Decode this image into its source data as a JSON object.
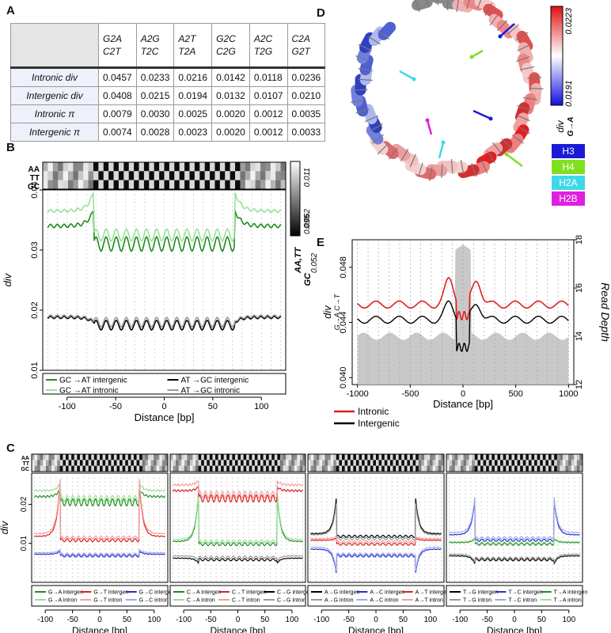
{
  "panels": {
    "A": "A",
    "B": "B",
    "C": "C",
    "D": "D",
    "E": "E"
  },
  "table": {
    "headers": [
      [
        "G2A",
        "C2T"
      ],
      [
        "A2G",
        "T2C"
      ],
      [
        "A2T",
        "T2A"
      ],
      [
        "G2C",
        "C2G"
      ],
      [
        "A2C",
        "T2G"
      ],
      [
        "C2A",
        "G2T"
      ]
    ],
    "rows": [
      {
        "label": "Intronic div",
        "values": [
          "0.0457",
          "0.0233",
          "0.0216",
          "0.0142",
          "0.0118",
          "0.0236"
        ]
      },
      {
        "label": "Intergenic div",
        "values": [
          "0.0408",
          "0.0215",
          "0.0194",
          "0.0132",
          "0.0107",
          "0.0210"
        ]
      },
      {
        "label": "Intronic π",
        "values": [
          "0.0079",
          "0.0030",
          "0.0025",
          "0.0020",
          "0.0012",
          "0.0035"
        ]
      },
      {
        "label": "Intergenic π",
        "values": [
          "0.0074",
          "0.0028",
          "0.0023",
          "0.0020",
          "0.0012",
          "0.0033"
        ]
      }
    ]
  },
  "colors": {
    "dark_green": "#1e8c1e",
    "light_green": "#9be09b",
    "black": "#000000",
    "grey": "#9a9a9a",
    "red": "#e01e1e",
    "light_red": "#f0a0a0",
    "blue": "#2030d0",
    "light_blue": "#a0a8ee",
    "h3": "#1a1ad8",
    "h4": "#80e020",
    "h2a": "#40d8e8",
    "h2b": "#e020e0"
  },
  "track_labels": [
    "AA",
    "TT",
    "GC"
  ],
  "chart_data": [
    {
      "type": "line",
      "id": "B",
      "xlabel": "Distance [bp]",
      "ylabel": "div",
      "xlim": [
        -125,
        125
      ],
      "ylim": [
        0.01,
        0.04
      ],
      "xticks": [
        -100,
        -50,
        0,
        50,
        100
      ],
      "yticks": [
        0.01,
        0.02,
        0.03,
        0.04
      ],
      "yticklabels": [
        "0.01",
        "0.02",
        "0.03",
        "0.04"
      ],
      "series": [
        {
          "name": "GC →AT intergenic",
          "color": "#1e8c1e",
          "outer": 0.034,
          "inner": 0.031,
          "amp": 0.0012,
          "edge": 0.0025,
          "w": 1.6
        },
        {
          "name": "GC →AT intronic",
          "color": "#9be09b",
          "outer": 0.0365,
          "inner": 0.0325,
          "amp": 0.001,
          "edge": 0.003,
          "w": 1.6
        },
        {
          "name": "AT →GC intergenic",
          "color": "#000000",
          "outer": 0.0188,
          "inner": 0.0175,
          "amp": 0.0008,
          "edge": -0.0008,
          "w": 1.6
        },
        {
          "name": "AT →GC intronic",
          "color": "#9a9a9a",
          "outer": 0.019,
          "inner": 0.018,
          "amp": 0.0008,
          "edge": -0.0008,
          "w": 1.6
        }
      ],
      "colorbar": {
        "labels_top": [
          "0.011",
          "0.062"
        ],
        "labels_bottom": [
          "0.095",
          "0.052"
        ],
        "title": "AA,TT",
        "title2": "GC"
      }
    },
    {
      "type": "line",
      "id": "C1",
      "xlabel": "Distance [bp]",
      "ylabel": "div",
      "xlim": [
        -125,
        125
      ],
      "ylim": [
        0,
        0.028
      ],
      "xticks": [
        -100,
        -50,
        0,
        50,
        100
      ],
      "yticks": [
        0.01,
        0.02
      ],
      "yticklabels": [
        "0.01",
        "0.02"
      ],
      "series": [
        {
          "name": "G→A intergen",
          "color": "#1e8c1e",
          "outer": 0.022,
          "inner": 0.0205,
          "amp": 0.0009,
          "edge": 0.002
        },
        {
          "name": "G→A intron",
          "color": "#9be09b",
          "outer": 0.0235,
          "inner": 0.0215,
          "amp": 0.0008,
          "edge": 0.002
        },
        {
          "name": "G→T intergen",
          "color": "#e01e1e",
          "outer": 0.0118,
          "inner": 0.0108,
          "amp": 0.0004,
          "edge": 0.014
        },
        {
          "name": "G→T intron",
          "color": "#f0a0a0",
          "outer": 0.0125,
          "inner": 0.0115,
          "amp": 0.0004,
          "edge": 0.014
        },
        {
          "name": "G→C intergen",
          "color": "#2030d0",
          "outer": 0.0072,
          "inner": 0.0068,
          "amp": 0.0003,
          "edge": 0.0008
        },
        {
          "name": "G→C intron",
          "color": "#a0a8ee",
          "outer": 0.0076,
          "inner": 0.0072,
          "amp": 0.0003,
          "edge": 0.0008
        }
      ]
    },
    {
      "type": "line",
      "id": "C2",
      "xlabel": "Distance [bp]",
      "xlim": [
        -125,
        125
      ],
      "ylim": [
        0,
        0.028
      ],
      "xticks": [
        -100,
        -50,
        0,
        50,
        100
      ],
      "series": [
        {
          "name": "C→A intergen",
          "color": "#1e8c1e",
          "outer": 0.0105,
          "inner": 0.0098,
          "amp": 0.0004,
          "edge": 0.012
        },
        {
          "name": "C→A intron",
          "color": "#9be09b",
          "outer": 0.011,
          "inner": 0.0105,
          "amp": 0.0004,
          "edge": 0.012
        },
        {
          "name": "C→T intergen",
          "color": "#e01e1e",
          "outer": 0.0235,
          "inner": 0.0215,
          "amp": 0.0009,
          "edge": 0.001
        },
        {
          "name": "C→T intron",
          "color": "#f0a0a0",
          "outer": 0.025,
          "inner": 0.0225,
          "amp": 0.0009,
          "edge": 0.001
        },
        {
          "name": "C→G intergen",
          "color": "#000000",
          "outer": 0.0062,
          "inner": 0.0058,
          "amp": 0.0003,
          "edge": -0.0012
        },
        {
          "name": "C→G intron",
          "color": "#9a9a9a",
          "outer": 0.0068,
          "inner": 0.0064,
          "amp": 0.0003,
          "edge": -0.0012
        }
      ]
    },
    {
      "type": "line",
      "id": "C3",
      "xlabel": "Distance [bp]",
      "xlim": [
        -125,
        125
      ],
      "ylim": [
        0,
        0.028
      ],
      "xticks": [
        -100,
        -50,
        0,
        50,
        100
      ],
      "series": [
        {
          "name": "A→G intergen",
          "color": "#000000",
          "outer": 0.0125,
          "inner": 0.0118,
          "amp": 0.0003,
          "edge": 0.009
        },
        {
          "name": "A→G intron",
          "color": "#9a9a9a",
          "outer": 0.0122,
          "inner": 0.0112,
          "amp": 0.0003,
          "edge": 0.008
        },
        {
          "name": "A→C intergen",
          "color": "#2030d0",
          "outer": 0.0085,
          "inner": 0.0068,
          "amp": 0.0003,
          "edge": -0.006
        },
        {
          "name": "A→C intron",
          "color": "#a0a8ee",
          "outer": 0.009,
          "inner": 0.0072,
          "amp": 0.0003,
          "edge": -0.006
        },
        {
          "name": "A→T intergen",
          "color": "#e01e1e",
          "outer": 0.0108,
          "inner": 0.0098,
          "amp": 0.0003,
          "edge": 0.0005
        },
        {
          "name": "A→T intron",
          "color": "#f0a0a0",
          "outer": 0.0112,
          "inner": 0.0104,
          "amp": 0.0003,
          "edge": 0.0005
        }
      ]
    },
    {
      "type": "line",
      "id": "C4",
      "xlabel": "Distance [bp]",
      "xlim": [
        -125,
        125
      ],
      "ylim": [
        0,
        0.028
      ],
      "xticks": [
        -100,
        -50,
        0,
        50,
        100
      ],
      "series": [
        {
          "name": "T→G intergen",
          "color": "#000000",
          "outer": 0.0068,
          "inner": 0.0058,
          "amp": 0.0003,
          "edge": -0.002
        },
        {
          "name": "T→G intron",
          "color": "#9a9a9a",
          "outer": 0.0072,
          "inner": 0.0062,
          "amp": 0.0003,
          "edge": -0.002
        },
        {
          "name": "T→C intergen",
          "color": "#2030d0",
          "outer": 0.0122,
          "inner": 0.0108,
          "amp": 0.0003,
          "edge": 0.009
        },
        {
          "name": "T→C intron",
          "color": "#a0a8ee",
          "outer": 0.0128,
          "inner": 0.0114,
          "amp": 0.0003,
          "edge": 0.009
        },
        {
          "name": "T→A intergen",
          "color": "#1e8c1e",
          "outer": 0.0102,
          "inner": 0.0098,
          "amp": 0.0003,
          "edge": 0.001
        },
        {
          "name": "T→A intron",
          "color": "#9be09b",
          "outer": 0.0104,
          "inner": 0.0101,
          "amp": 0.0003,
          "edge": 0.001
        }
      ]
    },
    {
      "type": "line",
      "id": "E",
      "xlabel": "Distance [bp]",
      "ylabel": "div",
      "ylabel_sub": "G→A,C→T",
      "ylabel2": "Read Depth",
      "xlim": [
        -1050,
        1050
      ],
      "ylim": [
        0.0395,
        0.05
      ],
      "ylim2": [
        12,
        18
      ],
      "xticks": [
        -1000,
        -500,
        0,
        500,
        1000
      ],
      "xticklabels": [
        "-1000",
        "-500",
        "0",
        "500",
        "1000"
      ],
      "yticks": [
        0.04,
        0.044,
        0.048
      ],
      "yticklabels": [
        "0.040",
        "0.044",
        "0.048"
      ],
      "yticks2": [
        12,
        14,
        16,
        18
      ],
      "series": [
        {
          "name": "Intronic",
          "color": "#e01e1e"
        },
        {
          "name": "Intergenic",
          "color": "#000000"
        }
      ]
    },
    {
      "type": "heatmap",
      "id": "D",
      "colorbar_labels": [
        "0.0223",
        "0.0191"
      ],
      "colorbar_title": "div",
      "colorbar_sub": "G→A",
      "legend": [
        "H3",
        "H4",
        "H2A",
        "H2B"
      ]
    }
  ]
}
